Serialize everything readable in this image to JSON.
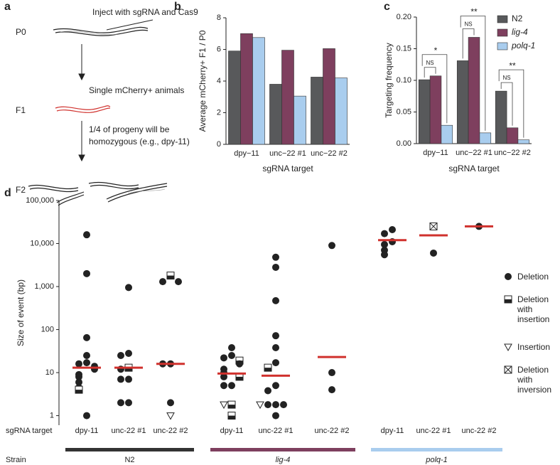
{
  "diagram": {
    "panel": "a",
    "generations": [
      "P0",
      "F1",
      "F2"
    ],
    "steps": [
      "Inject with sgRNA and Cas9",
      "Single mCherry+ animals",
      "1/4 of progeny will be",
      "homozygous (e.g., dpy-11)"
    ]
  },
  "chart_data": [
    {
      "type": "bar",
      "panel": "b",
      "ylabel": "Average mCherry+ F1 / P0",
      "xlabel": "sgRNA target",
      "categories": [
        "dpy−11",
        "unc−22 #1",
        "unc−22 #2"
      ],
      "ylim": [
        0,
        8
      ],
      "yticks": [
        0,
        2,
        4,
        6,
        8
      ],
      "series": [
        {
          "color": "#58595b",
          "values": [
            5.9,
            3.8,
            4.25
          ]
        },
        {
          "color": "#7e3f5e",
          "values": [
            7.0,
            5.95,
            6.05
          ]
        },
        {
          "color": "#a9cdee",
          "values": [
            6.75,
            3.05,
            4.2
          ]
        }
      ]
    },
    {
      "type": "bar",
      "panel": "c",
      "ylabel": "Targeting frequency",
      "xlabel": "sgRNA target",
      "categories": [
        "dpy−11",
        "unc−22 #1",
        "unc−22 #2"
      ],
      "ylim": [
        0,
        0.2
      ],
      "yticks": [
        {
          "value": 0,
          "label": "0.00"
        },
        0.05,
        {
          "value": 0.1,
          "label": "0.10"
        },
        0.15,
        {
          "value": 0.2,
          "label": "0.20"
        }
      ],
      "series": [
        {
          "name": "N2",
          "color": "#58595b",
          "font_style": "normal",
          "values": [
            0.101,
            0.131,
            0.083
          ]
        },
        {
          "name": "lig-4",
          "color": "#7e3f5e",
          "font_style": "italic",
          "values": [
            0.107,
            0.168,
            0.025
          ]
        },
        {
          "name": "polq-1",
          "color": "#a9cdee",
          "font_style": "italic",
          "values": [
            0.029,
            0.017,
            0.006
          ]
        }
      ],
      "significance": [
        [
          "NS",
          "*"
        ],
        [
          "NS",
          "**"
        ],
        [
          "NS",
          "**"
        ]
      ],
      "legend": "top-right"
    },
    {
      "type": "scatter",
      "panel": "d",
      "ylabel": "Size of event (bp)",
      "log_scale": true,
      "row_labels": [
        "sgRNA target",
        "Strain"
      ],
      "categories": [
        "dpy-11",
        "unc-22 #1",
        "unc-22 #2",
        "dpy-11",
        "unc-22 #1",
        "unc-22 #2",
        "dpy-11",
        "unc-22 #1",
        "unc-22 #2"
      ],
      "groups": [
        {
          "name": "N2",
          "color": "#333333",
          "font_style": "normal"
        },
        {
          "name": "lig-4",
          "color": "#7e3f5e",
          "font_style": "italic"
        },
        {
          "name": "polq-1",
          "color": "#a9cdee",
          "font_style": "italic"
        }
      ],
      "ylim": [
        0.6,
        100000
      ],
      "yticks": [
        1,
        10,
        100,
        {
          "value": 1000,
          "label": "1,000"
        },
        {
          "value": 10000,
          "label": "10,000"
        },
        {
          "value": 100000,
          "label": "100,000"
        }
      ],
      "series": [
        {
          "name": "Deletion",
          "marker": "circle",
          "color": "#222222",
          "values": [
            [
              16000,
              2000,
              65,
              25,
              17,
              16,
              14,
              12,
              9,
              8,
              6,
              4.5,
              1
            ],
            [
              950,
              28,
              25,
              12,
              7,
              7,
              2,
              2
            ],
            [
              1300,
              1300,
              16,
              16,
              2
            ],
            [
              38,
              25,
              22,
              16,
              12,
              10,
              8,
              5,
              5
            ],
            [
              4800,
              2800,
              470,
              72,
              38,
              17,
              5,
              3.8,
              1.8,
              1.8,
              1.8,
              1
            ],
            [
              9000,
              10,
              4
            ],
            [
              21000,
              17000,
              11000,
              9500,
              7000,
              5500
            ],
            [
              6000
            ],
            [
              25000
            ]
          ]
        },
        {
          "name": "Deletion with insertion",
          "marker": "half-square",
          "color": "#222222",
          "values": [
            [
              4
            ],
            [
              13
            ],
            [
              1800
            ],
            [
              19,
              8,
              1.8,
              1
            ],
            [
              13
            ],
            [],
            [],
            [],
            []
          ]
        },
        {
          "name": "Insertion",
          "marker": "triangle",
          "color": "#222222",
          "values": [
            [],
            [],
            [
              1
            ],
            [
              1.8
            ],
            [
              1.8
            ],
            [],
            [],
            [],
            []
          ]
        },
        {
          "name": "Deletion with inversion",
          "marker": "crossed-square",
          "color": "#222222",
          "values": [
            [],
            [],
            [],
            [],
            [],
            [],
            [],
            [
              25000
            ],
            []
          ]
        }
      ],
      "medians": [
        13,
        13,
        16,
        9.5,
        8.5,
        23,
        12000,
        15500,
        25000
      ],
      "median_color": "#d0312d"
    }
  ]
}
